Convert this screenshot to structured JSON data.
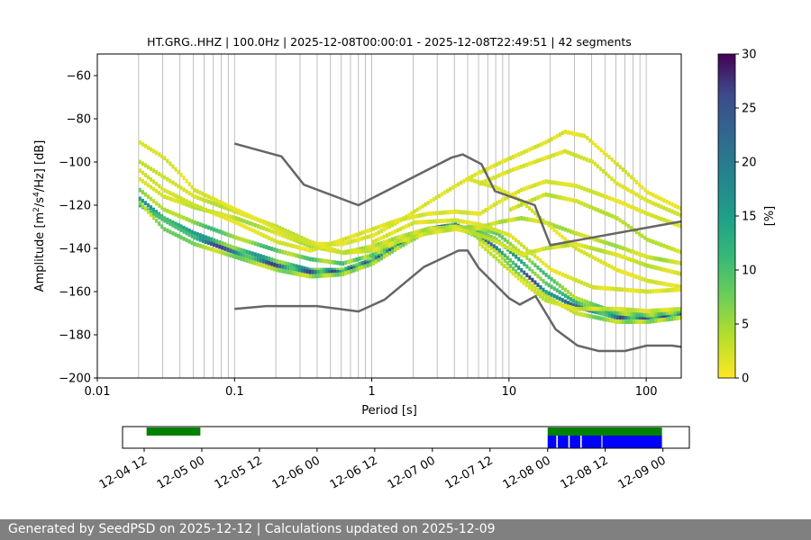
{
  "title": "HT.GRG..HHZ | 100.0Hz | 2025-12-08T00:00:01 - 2025-12-08T22:49:51 | 42 segments",
  "footer": "Generated by SeedPSD on 2025-12-12 | Calculations updated on 2025-12-09",
  "colors": {
    "model_line": "#666666",
    "grid": "#b0b0b0",
    "availability_green": "#008000",
    "availability_blue": "#0000ff",
    "footer_bg": "#808080"
  },
  "chart_data": [
    {
      "type": "heatmap",
      "title": "HT.GRG..HHZ | 100.0Hz | 2025-12-08T00:00:01 - 2025-12-08T22:49:51 | 42 segments",
      "xlabel": "Period [s]",
      "ylabel_main": "Amplitude [m",
      "ylabel_sup1": "2",
      "ylabel_mid": "/s",
      "ylabel_sup2": "4",
      "ylabel_end": "/Hz] [dB]",
      "xscale": "log",
      "xlim": [
        0.01,
        180
      ],
      "ylim": [
        -200,
        -50
      ],
      "x_ticks": [
        0.01,
        0.1,
        1,
        10,
        100
      ],
      "x_tick_labels": [
        "0.01",
        "0.1",
        "1",
        "10",
        "100"
      ],
      "y_ticks": [
        -200,
        -180,
        -160,
        -140,
        -120,
        -100,
        -80,
        -60
      ],
      "y_tick_labels": [
        "−200",
        "−180",
        "−160",
        "−140",
        "−120",
        "−100",
        "−80",
        "−60"
      ],
      "grid": true,
      "colorbar": {
        "label": "[%]",
        "range": [
          0,
          30
        ],
        "ticks": [
          0,
          5,
          10,
          15,
          20,
          25,
          30
        ],
        "tick_labels": [
          "0",
          "5",
          "10",
          "15",
          "20",
          "25",
          "30"
        ],
        "colormap": "viridis_r"
      },
      "noise_models": [
        {
          "name": "high",
          "points": [
            [
              0.1,
              -91.5
            ],
            [
              0.22,
              -97.4
            ],
            [
              0.32,
              -110.5
            ],
            [
              0.8,
              -120
            ],
            [
              3.8,
              -98
            ],
            [
              4.6,
              -96.5
            ],
            [
              6.3,
              -101
            ],
            [
              7.9,
              -113.5
            ],
            [
              15.4,
              -120
            ],
            [
              20,
              -138.5
            ],
            [
              200,
              -127
            ]
          ]
        },
        {
          "name": "low",
          "points": [
            [
              0.1,
              -168
            ],
            [
              0.17,
              -166.7
            ],
            [
              0.4,
              -166.7
            ],
            [
              0.8,
              -169.2
            ],
            [
              1.24,
              -163.7
            ],
            [
              2.4,
              -148.6
            ],
            [
              4.3,
              -141
            ],
            [
              5.0,
              -141
            ],
            [
              6.0,
              -149
            ],
            [
              10,
              -163
            ],
            [
              12,
              -166
            ],
            [
              15.6,
              -162.1
            ],
            [
              21.9,
              -177.5
            ],
            [
              31.6,
              -185
            ],
            [
              45,
              -187.5
            ],
            [
              70,
              -187.5
            ],
            [
              101,
              -185
            ],
            [
              154,
              -185
            ],
            [
              200,
              -186
            ]
          ]
        }
      ],
      "density_bands": [
        {
          "value": 12,
          "points": [
            [
              0.02,
              -117
            ],
            [
              0.03,
              -126
            ],
            [
              0.05,
              -133
            ],
            [
              0.1,
              -140
            ],
            [
              0.2,
              -146
            ],
            [
              0.35,
              -150
            ],
            [
              0.6,
              -150
            ],
            [
              1,
              -145
            ],
            [
              1.5,
              -138
            ],
            [
              2.5,
              -131
            ],
            [
              4,
              -130
            ],
            [
              5.5,
              -131
            ],
            [
              8,
              -136
            ],
            [
              12,
              -146
            ],
            [
              18,
              -156
            ],
            [
              30,
              -165
            ],
            [
              60,
              -171
            ],
            [
              100,
              -172
            ],
            [
              180,
              -170
            ]
          ]
        },
        {
          "value": 20,
          "points": [
            [
              0.02,
              -120
            ],
            [
              0.03,
              -127
            ],
            [
              0.05,
              -135
            ],
            [
              0.1,
              -142
            ],
            [
              0.2,
              -148
            ],
            [
              0.35,
              -151
            ],
            [
              0.6,
              -151
            ],
            [
              1,
              -146
            ],
            [
              1.5,
              -139
            ],
            [
              2.5,
              -131
            ],
            [
              4,
              -129
            ],
            [
              5.5,
              -133
            ],
            [
              8,
              -140
            ],
            [
              12,
              -150
            ],
            [
              18,
              -160
            ],
            [
              30,
              -167
            ],
            [
              60,
              -172
            ],
            [
              100,
              -172
            ],
            [
              180,
              -170
            ]
          ]
        },
        {
          "value": 8,
          "points": [
            [
              0.02,
              -113
            ],
            [
              0.03,
              -122
            ],
            [
              0.05,
              -128
            ],
            [
              0.1,
              -135
            ],
            [
              0.2,
              -141
            ],
            [
              0.35,
              -145
            ],
            [
              0.6,
              -147
            ],
            [
              1,
              -143
            ],
            [
              1.5,
              -137
            ],
            [
              2.5,
              -132
            ],
            [
              4,
              -131
            ],
            [
              5.5,
              -130
            ],
            [
              8,
              -133
            ],
            [
              12,
              -142
            ],
            [
              18,
              -152
            ],
            [
              30,
              -163
            ],
            [
              60,
              -170
            ],
            [
              100,
              -171
            ],
            [
              180,
              -169
            ]
          ]
        },
        {
          "value": 6,
          "points": [
            [
              0.02,
              -119
            ],
            [
              0.03,
              -131
            ],
            [
              0.05,
              -138
            ],
            [
              0.1,
              -144
            ],
            [
              0.2,
              -150
            ],
            [
              0.35,
              -153
            ],
            [
              0.6,
              -152
            ],
            [
              1,
              -147
            ],
            [
              1.5,
              -140
            ],
            [
              2.5,
              -132
            ],
            [
              4,
              -130
            ],
            [
              5.5,
              -134
            ],
            [
              8,
              -142
            ],
            [
              12,
              -153
            ],
            [
              18,
              -162
            ],
            [
              30,
              -170
            ],
            [
              60,
              -174
            ],
            [
              100,
              -174
            ],
            [
              180,
              -172
            ]
          ]
        },
        {
          "value": 4,
          "points": [
            [
              0.02,
              -108
            ],
            [
              0.03,
              -116
            ],
            [
              0.05,
              -121
            ],
            [
              0.1,
              -126
            ],
            [
              0.2,
              -133
            ],
            [
              0.35,
              -139
            ],
            [
              0.6,
              -142
            ],
            [
              1,
              -139
            ],
            [
              1.5,
              -135
            ],
            [
              2.5,
              -131
            ],
            [
              4,
              -130
            ],
            [
              5.5,
              -131
            ],
            [
              8,
              -128
            ],
            [
              12,
              -126
            ],
            [
              18,
              -128
            ],
            [
              30,
              -133
            ],
            [
              60,
              -139
            ],
            [
              100,
              -144
            ],
            [
              180,
              -147
            ]
          ]
        },
        {
          "value": 3,
          "points": [
            [
              0.02,
              -100
            ],
            [
              0.03,
              -107
            ],
            [
              0.05,
              -116
            ],
            [
              0.1,
              -123
            ],
            [
              0.2,
              -130
            ],
            [
              0.35,
              -137
            ],
            [
              0.6,
              -142
            ],
            [
              1,
              -141
            ],
            [
              1.5,
              -137
            ],
            [
              2.5,
              -133
            ],
            [
              4,
              -131
            ],
            [
              5.5,
              -133
            ],
            [
              8,
              -137
            ],
            [
              12,
              -143
            ],
            [
              18,
              -140
            ],
            [
              30,
              -138
            ],
            [
              60,
              -143
            ],
            [
              100,
              -148
            ],
            [
              180,
              -152
            ]
          ]
        },
        {
          "value": 2,
          "points": [
            [
              0.02,
              -91
            ],
            [
              0.03,
              -98
            ],
            [
              0.04,
              -106
            ],
            [
              0.05,
              -113
            ],
            [
              0.1,
              -122
            ],
            [
              0.2,
              -131
            ],
            [
              0.35,
              -138
            ],
            [
              0.6,
              -138
            ],
            [
              1,
              -134
            ],
            [
              1.5,
              -128
            ],
            [
              2.5,
              -119
            ],
            [
              4,
              -111
            ],
            [
              5.5,
              -106
            ],
            [
              8,
              -101
            ],
            [
              12,
              -96
            ],
            [
              18,
              -91
            ],
            [
              25,
              -86
            ],
            [
              35,
              -88
            ],
            [
              60,
              -101
            ],
            [
              100,
              -114
            ],
            [
              180,
              -122
            ]
          ]
        },
        {
          "value": 2,
          "points": [
            [
              0.02,
              -104
            ],
            [
              0.03,
              -113
            ],
            [
              0.05,
              -120
            ],
            [
              0.1,
              -128
            ],
            [
              0.2,
              -137
            ],
            [
              0.35,
              -141
            ],
            [
              0.6,
              -136
            ],
            [
              1,
              -131
            ],
            [
              1.5,
              -127
            ],
            [
              2.5,
              -124
            ],
            [
              4,
              -123
            ],
            [
              6,
              -124
            ],
            [
              8,
              -119
            ],
            [
              12,
              -113
            ],
            [
              18,
              -109
            ],
            [
              30,
              -111
            ],
            [
              60,
              -118
            ],
            [
              100,
              -124
            ],
            [
              180,
              -130
            ]
          ]
        },
        {
          "value": 3,
          "points": [
            [
              6,
              -138
            ],
            [
              8,
              -145
            ],
            [
              12,
              -155
            ],
            [
              18,
              -164
            ],
            [
              30,
              -168
            ],
            [
              60,
              -168
            ],
            [
              100,
              -169
            ],
            [
              180,
              -168
            ]
          ]
        },
        {
          "value": 2,
          "points": [
            [
              5,
              -108
            ],
            [
              8,
              -112
            ],
            [
              12,
              -118
            ],
            [
              18,
              -128
            ],
            [
              30,
              -140
            ],
            [
              60,
              -150
            ],
            [
              100,
              -155
            ],
            [
              180,
              -158
            ]
          ]
        },
        {
          "value": 2,
          "points": [
            [
              6,
              -110
            ],
            [
              10,
              -104
            ],
            [
              15,
              -100
            ],
            [
              25,
              -95
            ],
            [
              40,
              -100
            ],
            [
              60,
              -110
            ],
            [
              100,
              -118
            ],
            [
              180,
              -125
            ]
          ]
        },
        {
          "value": 3,
          "points": [
            [
              10,
              -122
            ],
            [
              18,
              -115
            ],
            [
              30,
              -118
            ],
            [
              60,
              -126
            ],
            [
              100,
              -136
            ],
            [
              180,
              -142
            ]
          ]
        },
        {
          "value": 2,
          "points": [
            [
              1,
              -137
            ],
            [
              2,
              -128
            ],
            [
              4,
              -127
            ],
            [
              6,
              -129
            ],
            [
              10,
              -134
            ],
            [
              20,
              -150
            ],
            [
              40,
              -158
            ],
            [
              100,
              -160
            ],
            [
              180,
              -159
            ]
          ]
        }
      ]
    },
    {
      "type": "bar",
      "title": "",
      "x_tick_labels": [
        "12-04 12",
        "12-05 00",
        "12-05 12",
        "12-06 00",
        "12-06 12",
        "12-07 00",
        "12-07 12",
        "12-08 00",
        "12-08 12",
        "12-09 00"
      ],
      "x_ticks_hours": [
        12,
        24,
        36,
        48,
        60,
        72,
        84,
        96,
        108,
        120
      ],
      "xlim_hours": [
        7.5,
        125.5
      ],
      "x_origin": "12-04 00",
      "green_intervals_hours": [
        [
          12.5,
          23.7
        ],
        [
          96,
          119.8
        ]
      ],
      "blue_intervals_hours": [
        [
          96,
          97.8
        ],
        [
          98.1,
          100.3
        ],
        [
          100.6,
          102.8
        ],
        [
          103.1,
          107.2
        ],
        [
          107.4,
          119.8
        ]
      ]
    }
  ]
}
